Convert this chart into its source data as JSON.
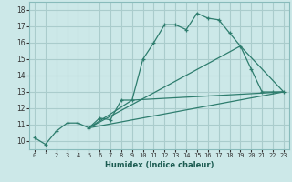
{
  "title": "",
  "xlabel": "Humidex (Indice chaleur)",
  "ylabel": "",
  "bg_color": "#cce8e8",
  "grid_color": "#aacccc",
  "line_color": "#2e7d6e",
  "xlim": [
    -0.5,
    23.5
  ],
  "ylim": [
    9.5,
    18.5
  ],
  "xticks": [
    0,
    1,
    2,
    3,
    4,
    5,
    6,
    7,
    8,
    9,
    10,
    11,
    12,
    13,
    14,
    15,
    16,
    17,
    18,
    19,
    20,
    21,
    22,
    23
  ],
  "yticks": [
    10,
    11,
    12,
    13,
    14,
    15,
    16,
    17,
    18
  ],
  "series1_x": [
    0,
    1,
    2,
    3,
    4,
    5,
    6,
    7,
    8,
    9,
    10,
    11,
    12,
    13,
    14,
    15,
    16,
    17,
    18,
    19,
    20,
    21,
    22,
    23
  ],
  "series1_y": [
    10.2,
    9.8,
    10.6,
    11.1,
    11.1,
    10.8,
    11.4,
    11.3,
    12.5,
    12.5,
    15.0,
    16.0,
    17.1,
    17.1,
    16.8,
    17.8,
    17.5,
    17.4,
    16.6,
    15.8,
    14.4,
    13.0,
    13.0,
    13.0
  ],
  "series2_x": [
    5,
    9,
    23
  ],
  "series2_y": [
    10.8,
    12.5,
    13.0
  ],
  "series3_x": [
    5,
    19,
    23
  ],
  "series3_y": [
    10.8,
    15.8,
    13.0
  ],
  "series4_x": [
    5,
    23
  ],
  "series4_y": [
    10.8,
    13.0
  ],
  "xlabel_fontsize": 6.0,
  "tick_fontsize": 5.0
}
